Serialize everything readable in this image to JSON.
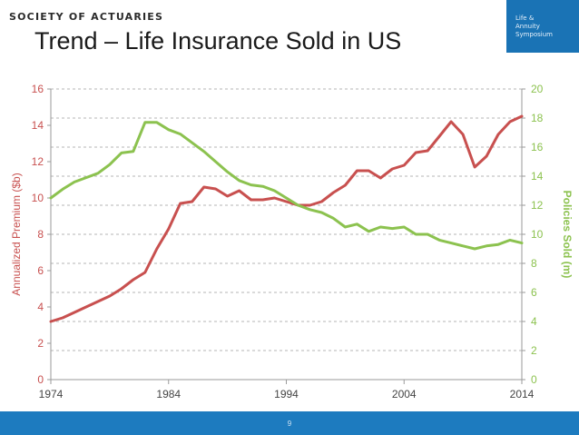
{
  "header": {
    "org": "SOCIETY OF ACTUARIES",
    "logo_lines": [
      "Life &",
      "Annuity",
      "Symposium"
    ]
  },
  "slide": {
    "title": "Trend – Life Insurance Sold in US",
    "page_number": "9"
  },
  "colors": {
    "premium": "#c8504f",
    "policies": "#8cc24f",
    "grid": "#b5b5b5",
    "axis_text": "#444444",
    "logo_bg": "#1a73b5",
    "footer_bg": "#1d7bbf"
  },
  "chart_data": {
    "type": "line",
    "title": "",
    "xlabel": "",
    "x_ticks": [
      "1974",
      "1984",
      "1994",
      "2004",
      "2014"
    ],
    "xlim": [
      1974,
      2014
    ],
    "y_left": {
      "label": "Annualized Premium ($b)",
      "lim": [
        0,
        16
      ],
      "ticks": [
        0,
        2,
        4,
        6,
        8,
        10,
        12,
        14,
        16
      ]
    },
    "y_right": {
      "label": "Policies Sold (m)",
      "lim": [
        0,
        20
      ],
      "ticks": [
        0,
        2,
        4,
        6,
        8,
        10,
        12,
        14,
        16,
        18,
        20
      ]
    },
    "grid": "horizontal dashed",
    "x": [
      1974,
      1975,
      1976,
      1977,
      1978,
      1979,
      1980,
      1981,
      1982,
      1983,
      1984,
      1985,
      1986,
      1987,
      1988,
      1989,
      1990,
      1991,
      1992,
      1993,
      1994,
      1995,
      1996,
      1997,
      1998,
      1999,
      2000,
      2001,
      2002,
      2003,
      2004,
      2005,
      2006,
      2007,
      2008,
      2009,
      2010,
      2011,
      2012,
      2013,
      2014
    ],
    "series": [
      {
        "name": "Annualized Premium ($b)",
        "axis": "left",
        "values": [
          3.2,
          3.4,
          3.7,
          4.0,
          4.3,
          4.6,
          5.0,
          5.5,
          5.9,
          7.2,
          8.3,
          9.7,
          9.8,
          10.6,
          10.5,
          10.1,
          10.4,
          9.9,
          9.9,
          10.0,
          9.8,
          9.6,
          9.6,
          9.8,
          10.3,
          10.7,
          11.5,
          11.5,
          11.1,
          11.6,
          11.8,
          12.5,
          12.6,
          13.4,
          14.2,
          13.5,
          11.7,
          12.3,
          13.5,
          14.2,
          14.5
        ]
      },
      {
        "name": "Policies Sold (m)",
        "axis": "right",
        "values": [
          12.5,
          13.1,
          13.6,
          13.9,
          14.2,
          14.8,
          15.6,
          15.7,
          17.7,
          17.7,
          17.2,
          16.9,
          16.3,
          15.7,
          15.0,
          14.3,
          13.7,
          13.4,
          13.3,
          13.0,
          12.5,
          12.0,
          11.7,
          11.5,
          11.1,
          10.5,
          10.7,
          10.2,
          10.5,
          10.4,
          10.5,
          10.0,
          10.0,
          9.6,
          9.4,
          9.2,
          9.0,
          9.2,
          9.3,
          9.6,
          9.4
        ]
      }
    ]
  }
}
